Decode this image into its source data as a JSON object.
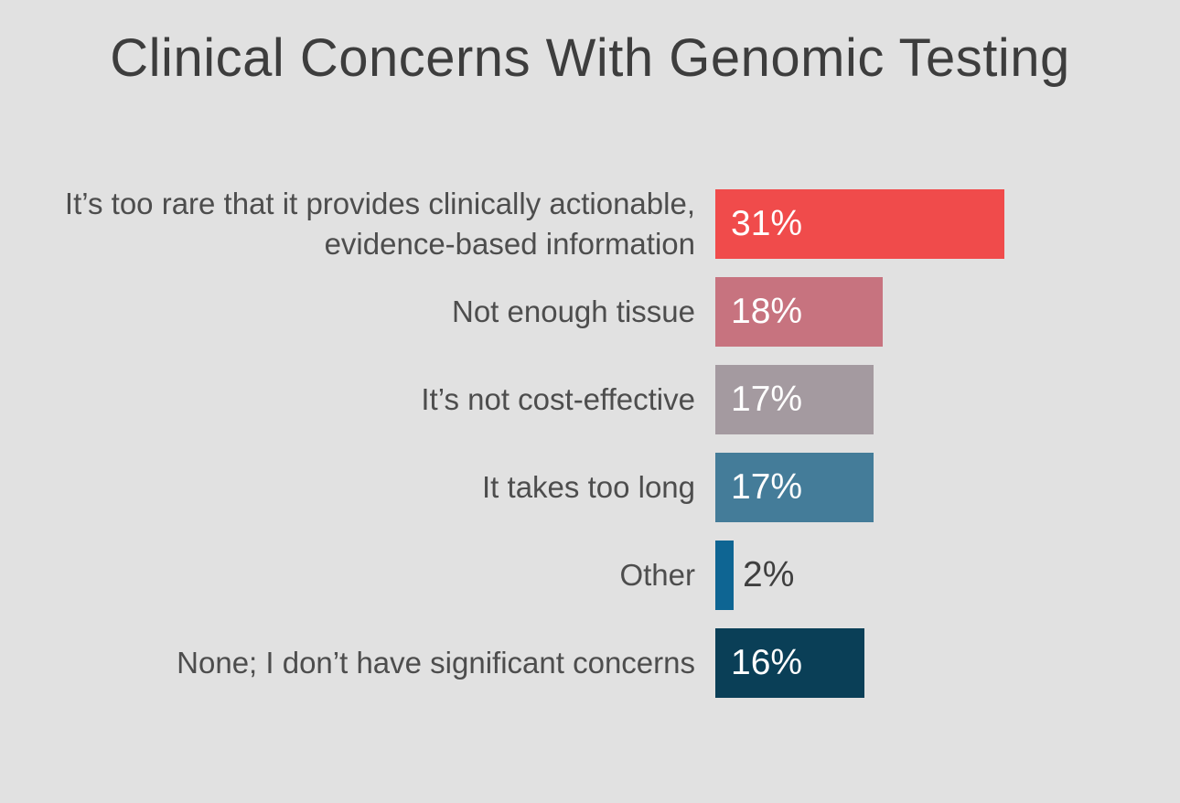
{
  "page": {
    "background_color": "#e1e1e1",
    "title_color": "#3d3d3d",
    "label_color": "#4d4d4d"
  },
  "title": "Clinical Concerns With Genomic Testing",
  "chart_data": {
    "type": "bar",
    "orientation": "horizontal",
    "title": "Clinical Concerns With Genomic Testing",
    "unit": "percent",
    "xlim": [
      0,
      31
    ],
    "grid": false,
    "legend": "none",
    "categories": [
      "It’s too rare that it provides clinically actionable, evidence-based information",
      "Not enough tissue",
      "It’s not cost-effective",
      "It takes too long",
      "Other",
      "None; I don’t have significant concerns"
    ],
    "values": [
      31,
      18,
      17,
      17,
      2,
      16
    ],
    "bars": [
      {
        "label": "It’s too rare that it provides clinically actionable, evidence-based information",
        "value": 31,
        "display": "31%",
        "color": "#f04b4b",
        "value_label_inside": true,
        "value_label_color": "#ffffff"
      },
      {
        "label": "Not enough tissue",
        "value": 18,
        "display": "18%",
        "color": "#c7737f",
        "value_label_inside": true,
        "value_label_color": "#ffffff"
      },
      {
        "label": "It’s not cost-effective",
        "value": 17,
        "display": "17%",
        "color": "#a49aa0",
        "value_label_inside": true,
        "value_label_color": "#ffffff"
      },
      {
        "label": "It takes too long",
        "value": 17,
        "display": "17%",
        "color": "#447c99",
        "value_label_inside": true,
        "value_label_color": "#ffffff"
      },
      {
        "label": "Other",
        "value": 2,
        "display": "2%",
        "color": "#0e6593",
        "value_label_inside": false,
        "value_label_color": "#3f3f3f"
      },
      {
        "label": "None; I don’t have significant concerns",
        "value": 16,
        "display": "16%",
        "color": "#0a3f57",
        "value_label_inside": true,
        "value_label_color": "#ffffff"
      }
    ]
  }
}
